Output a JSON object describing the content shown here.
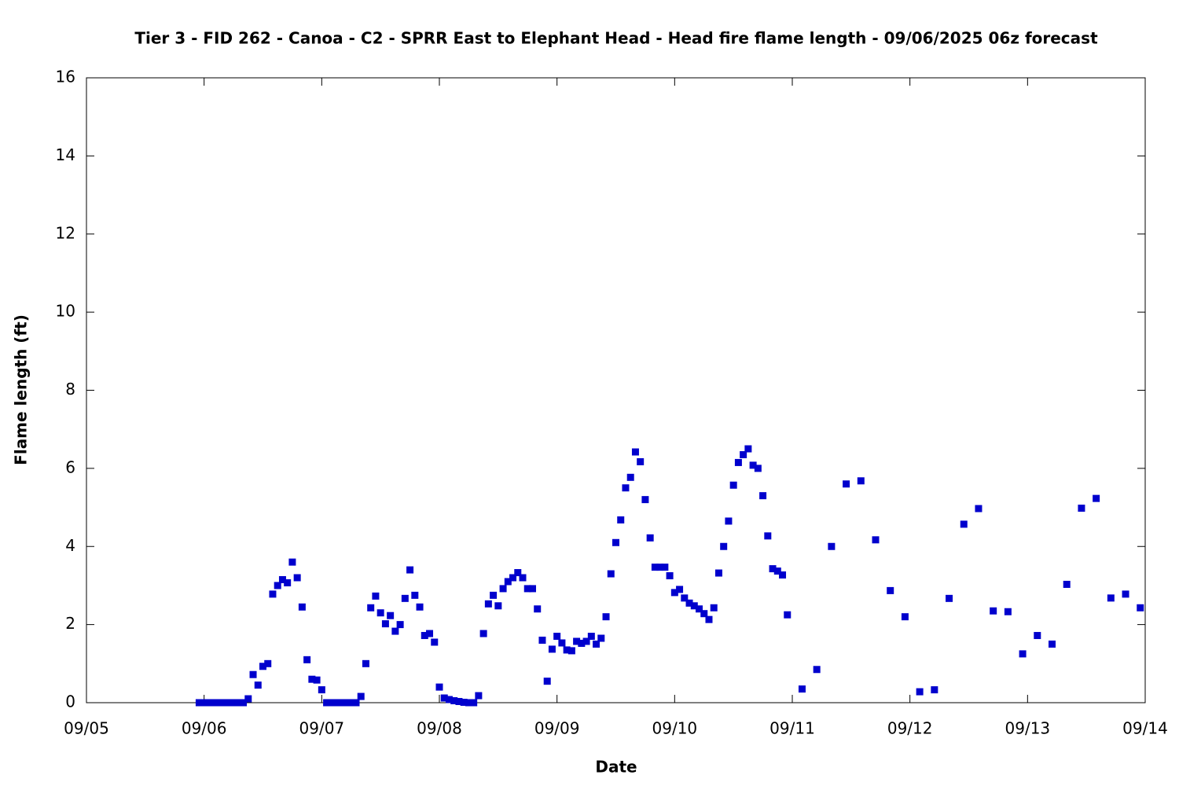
{
  "chart_data": {
    "type": "scatter",
    "title": "Tier 3 - FID 262 - Canoa - C2 - SPRR East to Elephant Head - Head fire flame length - 09/06/2025 06z forecast",
    "x_label": "Date",
    "y_label": "Flame length (ft)",
    "color": "#0000cd",
    "xlim": [
      5,
      14
    ],
    "xticks": [
      {
        "value": 5,
        "label": "09/05"
      },
      {
        "value": 6,
        "label": "09/06"
      },
      {
        "value": 7,
        "label": "09/07"
      },
      {
        "value": 8,
        "label": "09/08"
      },
      {
        "value": 9,
        "label": "09/09"
      },
      {
        "value": 10,
        "label": "09/10"
      },
      {
        "value": 11,
        "label": "09/11"
      },
      {
        "value": 12,
        "label": "09/12"
      },
      {
        "value": 13,
        "label": "09/13"
      },
      {
        "value": 14,
        "label": "09/14"
      }
    ],
    "ylim": [
      0,
      16
    ],
    "yticks": [
      0,
      2,
      4,
      6,
      8,
      10,
      12,
      14,
      16
    ],
    "x": [
      5.9583,
      6,
      6.0417,
      6.0833,
      6.125,
      6.1667,
      6.2083,
      6.25,
      6.2917,
      6.3333,
      6.375,
      6.4167,
      6.4583,
      6.5,
      6.5417,
      6.5833,
      6.625,
      6.6667,
      6.7083,
      6.75,
      6.7917,
      6.8333,
      6.875,
      6.9167,
      6.9583,
      7,
      7.0417,
      7.0833,
      7.125,
      7.1667,
      7.2083,
      7.25,
      7.2917,
      7.3333,
      7.375,
      7.4167,
      7.4583,
      7.5,
      7.5417,
      7.5833,
      7.625,
      7.6667,
      7.7083,
      7.75,
      7.7917,
      7.8333,
      7.875,
      7.9167,
      7.9583,
      8,
      8.0417,
      8.0833,
      8.125,
      8.1667,
      8.2083,
      8.25,
      8.2917,
      8.3333,
      8.375,
      8.4167,
      8.4583,
      8.5,
      8.5417,
      8.5833,
      8.625,
      8.6667,
      8.7083,
      8.75,
      8.7917,
      8.8333,
      8.875,
      8.9167,
      8.9583,
      9,
      9.0417,
      9.0833,
      9.125,
      9.1667,
      9.2083,
      9.25,
      9.2917,
      9.3333,
      9.375,
      9.4167,
      9.4583,
      9.5,
      9.5417,
      9.5833,
      9.625,
      9.6667,
      9.7083,
      9.75,
      9.7917,
      9.8333,
      9.875,
      9.9167,
      9.9583,
      10,
      10.0417,
      10.0833,
      10.125,
      10.1667,
      10.2083,
      10.25,
      10.2917,
      10.3333,
      10.375,
      10.4167,
      10.4583,
      10.5,
      10.5417,
      10.5833,
      10.625,
      10.6667,
      10.7083,
      10.75,
      10.7917,
      10.8333,
      10.875,
      10.9167,
      10.9583,
      11.0833,
      11.2083,
      11.3333,
      11.4583,
      11.5833,
      11.7083,
      11.8333,
      11.9583,
      12.0833,
      12.2083,
      12.3333,
      12.4583,
      12.5833,
      12.7083,
      12.8333,
      12.9583,
      13.0833,
      13.2083,
      13.3333,
      13.4583,
      13.5833,
      13.7083,
      13.8333,
      13.9583
    ],
    "values": [
      0,
      0,
      0,
      0,
      0,
      0,
      0,
      0,
      0,
      0,
      0.1,
      0.72,
      0.45,
      0.93,
      1.0,
      2.78,
      3.0,
      3.15,
      3.07,
      3.6,
      3.2,
      2.45,
      1.1,
      0.6,
      0.58,
      0.33,
      0,
      0,
      0,
      0,
      0,
      0,
      0,
      0.16,
      1.0,
      2.43,
      2.73,
      2.3,
      2.02,
      2.23,
      1.83,
      2.0,
      2.67,
      3.4,
      2.75,
      2.45,
      1.72,
      1.77,
      1.55,
      0.4,
      0.12,
      0.08,
      0.05,
      0.03,
      0.01,
      0,
      0,
      0.18,
      1.77,
      2.53,
      2.75,
      2.48,
      2.92,
      3.1,
      3.2,
      3.33,
      3.2,
      2.92,
      2.92,
      2.4,
      1.6,
      0.55,
      1.37,
      1.7,
      1.53,
      1.35,
      1.33,
      1.57,
      1.52,
      1.57,
      1.7,
      1.5,
      1.65,
      2.2,
      3.3,
      4.1,
      4.68,
      5.5,
      5.77,
      6.42,
      6.17,
      5.2,
      4.22,
      3.47,
      3.47,
      3.47,
      3.25,
      2.82,
      2.9,
      2.68,
      2.55,
      2.48,
      2.4,
      2.28,
      2.13,
      2.43,
      3.32,
      4.0,
      4.65,
      5.57,
      6.15,
      6.35,
      6.5,
      6.08,
      6.0,
      5.3,
      4.27,
      3.43,
      3.37,
      3.27,
      2.25,
      0.35,
      0.85,
      4.0,
      5.6,
      5.68,
      4.17,
      2.87,
      2.2,
      0.28,
      0.33,
      2.67,
      4.57,
      4.97,
      2.35,
      2.33,
      1.25,
      1.72,
      1.5,
      3.03,
      4.98,
      5.23,
      2.68,
      2.78,
      2.43
    ]
  }
}
